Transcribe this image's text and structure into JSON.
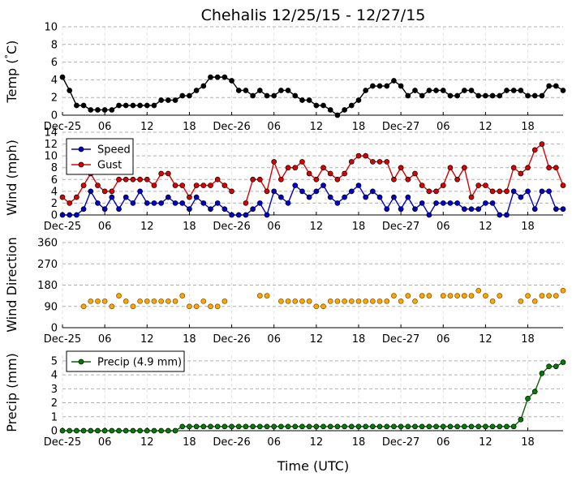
{
  "title": "Chehalis 12/25/15 - 12/27/15",
  "xlabel": "Time (UTC)",
  "x_ticks": [
    "Dec-25",
    "06",
    "12",
    "18",
    "Dec-26",
    "06",
    "12",
    "18",
    "Dec-27",
    "06",
    "12",
    "18"
  ],
  "colors": {
    "temp": "#000000",
    "speed": "#0000cc",
    "gust": "#dd0000",
    "direction_line": "#ff8c00",
    "direction_marker": "#ffa500",
    "precip": "#006400",
    "precip_marker": "#008000",
    "grid": "#b0b0b0"
  },
  "chart_data": [
    {
      "type": "line",
      "ylabel": "Temp (°C)",
      "ylabel_parts": [
        "Temp (",
        "°",
        "C)"
      ],
      "ylim": [
        0,
        10
      ],
      "yticks": [
        "0",
        "2",
        "4",
        "6",
        "8",
        "10"
      ],
      "x_unit": "hours since Dec-25 00 UTC",
      "series": [
        {
          "color_key": "temp",
          "values": [
            4.3,
            2.8,
            1.1,
            1.1,
            0.6,
            0.6,
            0.6,
            0.6,
            1.1,
            1.1,
            1.1,
            1.1,
            1.1,
            1.1,
            1.7,
            1.7,
            1.7,
            2.2,
            2.2,
            2.8,
            3.3,
            4.3,
            4.3,
            4.3,
            3.9,
            2.8,
            2.8,
            2.2,
            2.8,
            2.2,
            2.2,
            2.8,
            2.8,
            2.2,
            1.7,
            1.7,
            1.1,
            1.1,
            0.6,
            0.0,
            0.6,
            1.1,
            1.7,
            2.8,
            3.3,
            3.3,
            3.3,
            3.9,
            3.3,
            2.2,
            2.8,
            2.2,
            2.8,
            2.8,
            2.8,
            2.2,
            2.2,
            2.8,
            2.8,
            2.2,
            2.2,
            2.2,
            2.2,
            2.8,
            2.8,
            2.8,
            2.2,
            2.2,
            2.2,
            3.3,
            3.3,
            2.8
          ]
        }
      ]
    },
    {
      "type": "line",
      "ylabel": "Wind (mph)",
      "ylim": [
        0,
        14
      ],
      "yticks": [
        "0",
        "2",
        "4",
        "6",
        "8",
        "10",
        "12",
        "14"
      ],
      "legend": {
        "position": "upper-left",
        "entries": [
          "Speed",
          "Gust"
        ]
      },
      "series": [
        {
          "name": "Speed",
          "color_key": "speed",
          "values": [
            0,
            0,
            0,
            1,
            4,
            2,
            1,
            3,
            1,
            3,
            2,
            4,
            2,
            2,
            2,
            3,
            2,
            2,
            1,
            3,
            2,
            1,
            2,
            1,
            0,
            0,
            0,
            1,
            2,
            0,
            4,
            3,
            2,
            5,
            4,
            3,
            4,
            5,
            3,
            2,
            3,
            4,
            5,
            3,
            4,
            3,
            1,
            3,
            1,
            3,
            1,
            2,
            0,
            2,
            2,
            2,
            2,
            1,
            1,
            1,
            2,
            2,
            0,
            0,
            4,
            3,
            4,
            1,
            4,
            4,
            1,
            1
          ]
        },
        {
          "name": "Gust",
          "color_key": "gust",
          "values": [
            3,
            2,
            3,
            5,
            7,
            5,
            4,
            4,
            6,
            6,
            6,
            6,
            6,
            5,
            7,
            7,
            5,
            5,
            3,
            5,
            5,
            5,
            6,
            5,
            4,
            null,
            2,
            6,
            6,
            4,
            9,
            6,
            8,
            8,
            9,
            7,
            6,
            8,
            7,
            6,
            7,
            9,
            10,
            10,
            9,
            9,
            9,
            6,
            8,
            6,
            7,
            5,
            4,
            4,
            5,
            8,
            6,
            8,
            3,
            5,
            5,
            4,
            4,
            4,
            8,
            7,
            8,
            11,
            12,
            8,
            8,
            5
          ]
        }
      ]
    },
    {
      "type": "scatter",
      "ylabel": "Wind Direction",
      "ylim": [
        0,
        360
      ],
      "yticks": [
        "0",
        "90",
        "180",
        "270",
        "360"
      ],
      "series": [
        {
          "color_key": "direction_marker",
          "values": [
            null,
            null,
            null,
            90,
            112,
            112,
            112,
            90,
            135,
            112,
            90,
            112,
            112,
            112,
            112,
            112,
            112,
            135,
            90,
            90,
            112,
            90,
            90,
            112,
            null,
            null,
            null,
            null,
            135,
            135,
            null,
            112,
            112,
            112,
            112,
            112,
            90,
            90,
            112,
            112,
            112,
            112,
            112,
            112,
            112,
            112,
            112,
            135,
            112,
            135,
            112,
            135,
            135,
            null,
            135,
            135,
            135,
            135,
            135,
            157,
            135,
            112,
            135,
            null,
            null,
            112,
            135,
            112,
            135,
            135,
            135,
            157
          ]
        }
      ]
    },
    {
      "type": "line",
      "ylabel": "Precip (mm)",
      "ylim": [
        0,
        5.4
      ],
      "yticks": [
        "0",
        "1",
        "2",
        "3",
        "4",
        "5"
      ],
      "legend": {
        "position": "upper-left",
        "entries": [
          "Precip (4.9 mm)"
        ]
      },
      "series": [
        {
          "name": "Precip (4.9 mm)",
          "color_key": "precip",
          "values": [
            0,
            0,
            0,
            0,
            0,
            0,
            0,
            0,
            0,
            0,
            0,
            0,
            0,
            0,
            0,
            0,
            0,
            0.3,
            0.3,
            0.3,
            0.3,
            0.3,
            0.3,
            0.3,
            0.3,
            0.3,
            0.3,
            0.3,
            0.3,
            0.3,
            0.3,
            0.3,
            0.3,
            0.3,
            0.3,
            0.3,
            0.3,
            0.3,
            0.3,
            0.3,
            0.3,
            0.3,
            0.3,
            0.3,
            0.3,
            0.3,
            0.3,
            0.3,
            0.3,
            0.3,
            0.3,
            0.3,
            0.3,
            0.3,
            0.3,
            0.3,
            0.3,
            0.3,
            0.3,
            0.3,
            0.3,
            0.3,
            0.3,
            0.3,
            0.3,
            0.8,
            2.3,
            2.8,
            4.1,
            4.6,
            4.6,
            4.9
          ]
        }
      ]
    }
  ]
}
